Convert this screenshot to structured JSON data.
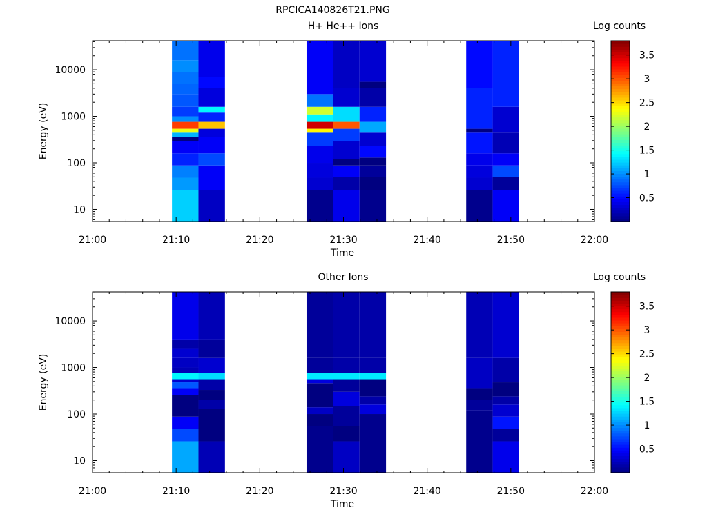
{
  "figure": {
    "title": "RPCICA140826T21.PNG"
  },
  "chart_data": [
    {
      "type": "heatmap",
      "title": "H+ He++ Ions",
      "xlabel": "Time",
      "ylabel": "Energy (eV)",
      "x_ticks": [
        "21:00",
        "21:10",
        "21:20",
        "21:30",
        "21:40",
        "21:50",
        "22:00"
      ],
      "x_range": [
        "21:00",
        "22:00"
      ],
      "y_scale": "log",
      "y_ticks": [
        "10",
        "100",
        "1000",
        "10000"
      ],
      "y_range": [
        5.5,
        42000
      ],
      "colorbar": {
        "label": "Log counts",
        "range": [
          0,
          3.8
        ],
        "ticks": [
          "0.5",
          "1",
          "1.5",
          "2",
          "2.5",
          "3",
          "3.5"
        ]
      },
      "columns": [
        {
          "start": "21:09:30",
          "end": "21:12:40",
          "cells": [
            {
              "e_lo": 5.5,
              "e_hi": 26,
              "v": 1.25
            },
            {
              "e_lo": 26,
              "e_hi": 48,
              "v": 1.05
            },
            {
              "e_lo": 48,
              "e_hi": 88,
              "v": 0.95
            },
            {
              "e_lo": 88,
              "e_hi": 160,
              "v": 0.6
            },
            {
              "e_lo": 160,
              "e_hi": 290,
              "v": 0.45
            },
            {
              "e_lo": 290,
              "e_hi": 360,
              "v": 0.0
            },
            {
              "e_lo": 360,
              "e_hi": 460,
              "v": 1.15
            },
            {
              "e_lo": 460,
              "e_hi": 540,
              "v": 2.3
            },
            {
              "e_lo": 540,
              "e_hi": 760,
              "v": 3.1
            },
            {
              "e_lo": 760,
              "e_hi": 1000,
              "v": 1.0
            },
            {
              "e_lo": 1000,
              "e_hi": 1600,
              "v": 0.7
            },
            {
              "e_lo": 1600,
              "e_hi": 3000,
              "v": 0.8
            },
            {
              "e_lo": 3000,
              "e_hi": 5000,
              "v": 0.85
            },
            {
              "e_lo": 5000,
              "e_hi": 9000,
              "v": 0.9
            },
            {
              "e_lo": 9000,
              "e_hi": 16000,
              "v": 1.0
            },
            {
              "e_lo": 16000,
              "e_hi": 42000,
              "v": 0.9
            }
          ]
        },
        {
          "start": "21:12:40",
          "end": "21:15:50",
          "cells": [
            {
              "e_lo": 5.5,
              "e_hi": 26,
              "v": 0.25
            },
            {
              "e_lo": 26,
              "e_hi": 88,
              "v": 0.45
            },
            {
              "e_lo": 88,
              "e_hi": 160,
              "v": 0.75
            },
            {
              "e_lo": 160,
              "e_hi": 360,
              "v": 0.45
            },
            {
              "e_lo": 360,
              "e_hi": 540,
              "v": 0.35
            },
            {
              "e_lo": 540,
              "e_hi": 760,
              "v": 2.6
            },
            {
              "e_lo": 760,
              "e_hi": 1200,
              "v": 0.6
            },
            {
              "e_lo": 1200,
              "e_hi": 1600,
              "v": 1.4
            },
            {
              "e_lo": 1600,
              "e_hi": 4000,
              "v": 0.35
            },
            {
              "e_lo": 4000,
              "e_hi": 7000,
              "v": 0.5
            },
            {
              "e_lo": 7000,
              "e_hi": 42000,
              "v": 0.4
            }
          ]
        },
        {
          "start": "21:25:35",
          "end": "21:28:45",
          "cells": [
            {
              "e_lo": 5.5,
              "e_hi": 26,
              "v": 0.05
            },
            {
              "e_lo": 26,
              "e_hi": 48,
              "v": 0.3
            },
            {
              "e_lo": 48,
              "e_hi": 100,
              "v": 0.35
            },
            {
              "e_lo": 100,
              "e_hi": 230,
              "v": 0.4
            },
            {
              "e_lo": 230,
              "e_hi": 460,
              "v": 0.7
            },
            {
              "e_lo": 460,
              "e_hi": 540,
              "v": 2.4
            },
            {
              "e_lo": 540,
              "e_hi": 760,
              "v": 3.5
            },
            {
              "e_lo": 760,
              "e_hi": 1100,
              "v": 1.4
            },
            {
              "e_lo": 1100,
              "e_hi": 1600,
              "v": 2.2
            },
            {
              "e_lo": 1600,
              "e_hi": 3000,
              "v": 0.9
            },
            {
              "e_lo": 3000,
              "e_hi": 42000,
              "v": 0.45
            }
          ]
        },
        {
          "start": "21:28:45",
          "end": "21:31:55",
          "cells": [
            {
              "e_lo": 5.5,
              "e_hi": 26,
              "v": 0.4
            },
            {
              "e_lo": 26,
              "e_hi": 50,
              "v": 0.15
            },
            {
              "e_lo": 50,
              "e_hi": 88,
              "v": 0.45
            },
            {
              "e_lo": 88,
              "e_hi": 120,
              "v": 0.0
            },
            {
              "e_lo": 120,
              "e_hi": 290,
              "v": 0.3
            },
            {
              "e_lo": 290,
              "e_hi": 540,
              "v": 0.7
            },
            {
              "e_lo": 540,
              "e_hi": 760,
              "v": 3.0
            },
            {
              "e_lo": 760,
              "e_hi": 1600,
              "v": 1.3
            },
            {
              "e_lo": 1600,
              "e_hi": 4000,
              "v": 0.3
            },
            {
              "e_lo": 4000,
              "e_hi": 42000,
              "v": 0.25
            }
          ]
        },
        {
          "start": "21:31:55",
          "end": "21:35:05",
          "cells": [
            {
              "e_lo": 5.5,
              "e_hi": 26,
              "v": 0.05
            },
            {
              "e_lo": 26,
              "e_hi": 50,
              "v": 0.0
            },
            {
              "e_lo": 50,
              "e_hi": 88,
              "v": 0.1
            },
            {
              "e_lo": 88,
              "e_hi": 130,
              "v": 0.0
            },
            {
              "e_lo": 130,
              "e_hi": 230,
              "v": 0.5
            },
            {
              "e_lo": 230,
              "e_hi": 460,
              "v": 0.3
            },
            {
              "e_lo": 460,
              "e_hi": 760,
              "v": 1.1
            },
            {
              "e_lo": 760,
              "e_hi": 1600,
              "v": 0.6
            },
            {
              "e_lo": 1600,
              "e_hi": 4000,
              "v": 0.15
            },
            {
              "e_lo": 4000,
              "e_hi": 5500,
              "v": 0.0
            },
            {
              "e_lo": 5500,
              "e_hi": 42000,
              "v": 0.3
            }
          ]
        },
        {
          "start": "21:44:40",
          "end": "21:47:50",
          "cells": [
            {
              "e_lo": 5.5,
              "e_hi": 26,
              "v": 0.05
            },
            {
              "e_lo": 26,
              "e_hi": 48,
              "v": 0.3
            },
            {
              "e_lo": 48,
              "e_hi": 88,
              "v": 0.35
            },
            {
              "e_lo": 88,
              "e_hi": 160,
              "v": 0.4
            },
            {
              "e_lo": 160,
              "e_hi": 460,
              "v": 0.55
            },
            {
              "e_lo": 460,
              "e_hi": 540,
              "v": 0.0
            },
            {
              "e_lo": 540,
              "e_hi": 4000,
              "v": 0.6
            },
            {
              "e_lo": 4000,
              "e_hi": 42000,
              "v": 0.5
            }
          ]
        },
        {
          "start": "21:47:50",
          "end": "21:51:00",
          "cells": [
            {
              "e_lo": 5.5,
              "e_hi": 26,
              "v": 0.45
            },
            {
              "e_lo": 26,
              "e_hi": 50,
              "v": 0.1
            },
            {
              "e_lo": 50,
              "e_hi": 88,
              "v": 0.75
            },
            {
              "e_lo": 88,
              "e_hi": 160,
              "v": 0.45
            },
            {
              "e_lo": 160,
              "e_hi": 460,
              "v": 0.2
            },
            {
              "e_lo": 460,
              "e_hi": 1600,
              "v": 0.3
            },
            {
              "e_lo": 1600,
              "e_hi": 42000,
              "v": 0.6
            }
          ]
        }
      ]
    },
    {
      "type": "heatmap",
      "title": "Other Ions",
      "xlabel": "Time",
      "ylabel": "Energy (eV)",
      "x_ticks": [
        "21:00",
        "21:10",
        "21:20",
        "21:30",
        "21:40",
        "21:50",
        "22:00"
      ],
      "x_range": [
        "21:00",
        "22:00"
      ],
      "y_scale": "log",
      "y_ticks": [
        "10",
        "100",
        "1000",
        "10000"
      ],
      "y_range": [
        5.5,
        42000
      ],
      "colorbar": {
        "label": "Log counts",
        "range": [
          0,
          3.8
        ],
        "ticks": [
          "0.5",
          "1",
          "1.5",
          "2",
          "2.5",
          "3",
          "3.5"
        ]
      },
      "columns": [
        {
          "start": "21:09:30",
          "end": "21:12:40",
          "cells": [
            {
              "e_lo": 5.5,
              "e_hi": 26,
              "v": 1.1
            },
            {
              "e_lo": 26,
              "e_hi": 48,
              "v": 0.75
            },
            {
              "e_lo": 48,
              "e_hi": 88,
              "v": 0.45
            },
            {
              "e_lo": 88,
              "e_hi": 260,
              "v": 0.0
            },
            {
              "e_lo": 260,
              "e_hi": 360,
              "v": 0.45
            },
            {
              "e_lo": 360,
              "e_hi": 480,
              "v": 0.8
            },
            {
              "e_lo": 480,
              "e_hi": 560,
              "v": 0.3
            },
            {
              "e_lo": 560,
              "e_hi": 760,
              "v": 1.4
            },
            {
              "e_lo": 760,
              "e_hi": 1000,
              "v": 0.2
            },
            {
              "e_lo": 1000,
              "e_hi": 1600,
              "v": 0.25
            },
            {
              "e_lo": 1600,
              "e_hi": 2600,
              "v": 0.3
            },
            {
              "e_lo": 2600,
              "e_hi": 4000,
              "v": 0.15
            },
            {
              "e_lo": 4000,
              "e_hi": 42000,
              "v": 0.4
            }
          ]
        },
        {
          "start": "21:12:40",
          "end": "21:15:50",
          "cells": [
            {
              "e_lo": 5.5,
              "e_hi": 26,
              "v": 0.2
            },
            {
              "e_lo": 26,
              "e_hi": 130,
              "v": 0.0
            },
            {
              "e_lo": 130,
              "e_hi": 200,
              "v": 0.15
            },
            {
              "e_lo": 200,
              "e_hi": 330,
              "v": 0.0
            },
            {
              "e_lo": 330,
              "e_hi": 560,
              "v": 0.15
            },
            {
              "e_lo": 560,
              "e_hi": 760,
              "v": 1.3
            },
            {
              "e_lo": 760,
              "e_hi": 1600,
              "v": 0.3
            },
            {
              "e_lo": 1600,
              "e_hi": 4000,
              "v": 0.1
            },
            {
              "e_lo": 4000,
              "e_hi": 42000,
              "v": 0.2
            }
          ]
        },
        {
          "start": "21:25:35",
          "end": "21:28:45",
          "cells": [
            {
              "e_lo": 5.5,
              "e_hi": 55,
              "v": 0.05
            },
            {
              "e_lo": 55,
              "e_hi": 100,
              "v": 0.0
            },
            {
              "e_lo": 100,
              "e_hi": 140,
              "v": 0.25
            },
            {
              "e_lo": 140,
              "e_hi": 460,
              "v": 0.0
            },
            {
              "e_lo": 460,
              "e_hi": 560,
              "v": 0.35
            },
            {
              "e_lo": 560,
              "e_hi": 760,
              "v": 1.35
            },
            {
              "e_lo": 760,
              "e_hi": 1600,
              "v": 0.1
            },
            {
              "e_lo": 1600,
              "e_hi": 42000,
              "v": 0.1
            }
          ]
        },
        {
          "start": "21:28:45",
          "end": "21:31:55",
          "cells": [
            {
              "e_lo": 5.5,
              "e_hi": 26,
              "v": 0.25
            },
            {
              "e_lo": 26,
              "e_hi": 55,
              "v": 0.0
            },
            {
              "e_lo": 55,
              "e_hi": 150,
              "v": 0.1
            },
            {
              "e_lo": 150,
              "e_hi": 300,
              "v": 0.35
            },
            {
              "e_lo": 300,
              "e_hi": 560,
              "v": 0.1
            },
            {
              "e_lo": 560,
              "e_hi": 760,
              "v": 1.35
            },
            {
              "e_lo": 760,
              "e_hi": 1600,
              "v": 0.15
            },
            {
              "e_lo": 1600,
              "e_hi": 42000,
              "v": 0.15
            }
          ]
        },
        {
          "start": "21:31:55",
          "end": "21:35:05",
          "cells": [
            {
              "e_lo": 5.5,
              "e_hi": 100,
              "v": 0.05
            },
            {
              "e_lo": 100,
              "e_hi": 160,
              "v": 0.35
            },
            {
              "e_lo": 160,
              "e_hi": 240,
              "v": 0.15
            },
            {
              "e_lo": 240,
              "e_hi": 560,
              "v": 0.0
            },
            {
              "e_lo": 560,
              "e_hi": 760,
              "v": 1.35
            },
            {
              "e_lo": 760,
              "e_hi": 1600,
              "v": 0.15
            },
            {
              "e_lo": 1600,
              "e_hi": 42000,
              "v": 0.15
            }
          ]
        },
        {
          "start": "21:44:40",
          "end": "21:47:50",
          "cells": [
            {
              "e_lo": 5.5,
              "e_hi": 120,
              "v": 0.05
            },
            {
              "e_lo": 120,
              "e_hi": 200,
              "v": 0.1
            },
            {
              "e_lo": 200,
              "e_hi": 360,
              "v": 0.0
            },
            {
              "e_lo": 360,
              "e_hi": 1600,
              "v": 0.25
            },
            {
              "e_lo": 1600,
              "e_hi": 42000,
              "v": 0.2
            }
          ]
        },
        {
          "start": "21:47:50",
          "end": "21:51:00",
          "cells": [
            {
              "e_lo": 5.5,
              "e_hi": 26,
              "v": 0.4
            },
            {
              "e_lo": 26,
              "e_hi": 48,
              "v": 0.1
            },
            {
              "e_lo": 48,
              "e_hi": 88,
              "v": 0.55
            },
            {
              "e_lo": 88,
              "e_hi": 160,
              "v": 0.3
            },
            {
              "e_lo": 160,
              "e_hi": 240,
              "v": 0.15
            },
            {
              "e_lo": 240,
              "e_hi": 480,
              "v": 0.0
            },
            {
              "e_lo": 480,
              "e_hi": 1600,
              "v": 0.15
            },
            {
              "e_lo": 1600,
              "e_hi": 42000,
              "v": 0.3
            }
          ]
        }
      ]
    }
  ]
}
